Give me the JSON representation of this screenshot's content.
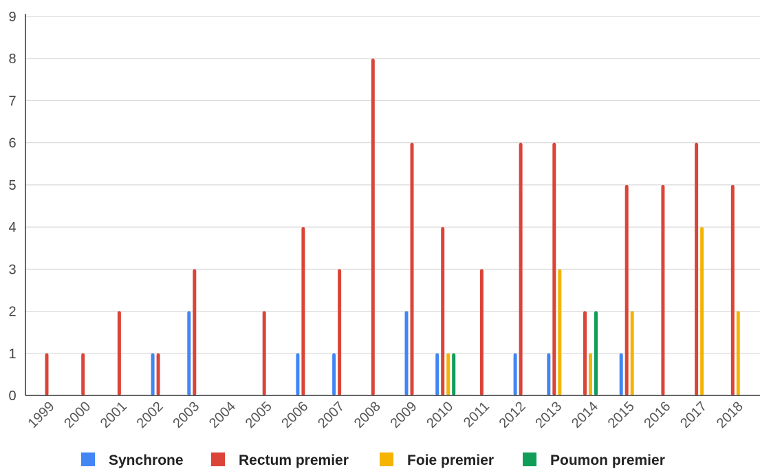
{
  "chart_data": {
    "type": "bar",
    "title": "",
    "xlabel": "",
    "ylabel": "",
    "ylim": [
      0,
      9
    ],
    "yticks": [
      "0",
      "1",
      "2",
      "3",
      "4",
      "5",
      "6",
      "7",
      "8",
      "9"
    ],
    "grid": true,
    "legend_position": "bottom",
    "categories": [
      "1999",
      "2000",
      "2001",
      "2002",
      "2003",
      "2004",
      "2005",
      "2006",
      "2007",
      "2008",
      "2009",
      "2010",
      "2011",
      "2012",
      "2013",
      "2014",
      "2015",
      "2016",
      "2017",
      "2018"
    ],
    "series": [
      {
        "name": "Synchrone",
        "color": "#4285f4",
        "values": [
          0,
          0,
          0,
          1,
          2,
          0,
          0,
          1,
          1,
          0,
          2,
          1,
          0,
          1,
          1,
          0,
          1,
          0,
          0,
          0
        ]
      },
      {
        "name": "Rectum premier",
        "color": "#db4437",
        "values": [
          1,
          1,
          2,
          1,
          3,
          0,
          2,
          4,
          3,
          8,
          6,
          4,
          3,
          6,
          6,
          2,
          5,
          5,
          6,
          5
        ]
      },
      {
        "name": "Foie premier",
        "color": "#f4b400",
        "values": [
          0,
          0,
          0,
          0,
          0,
          0,
          0,
          0,
          0,
          0,
          0,
          1,
          0,
          0,
          3,
          1,
          2,
          0,
          4,
          2
        ]
      },
      {
        "name": "Poumon premier",
        "color": "#0f9d58",
        "values": [
          0,
          0,
          0,
          0,
          0,
          0,
          0,
          0,
          0,
          0,
          0,
          1,
          0,
          0,
          0,
          2,
          0,
          0,
          0,
          0
        ]
      }
    ]
  }
}
